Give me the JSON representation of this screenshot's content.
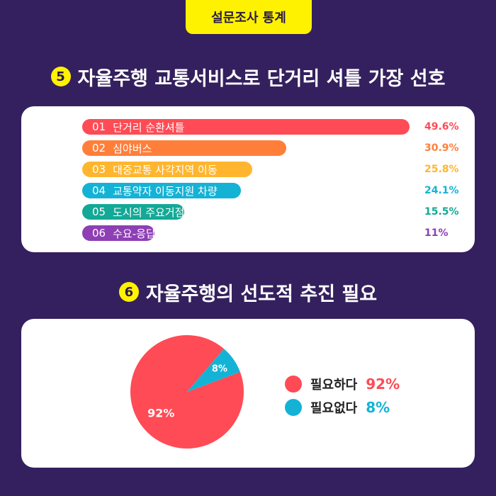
{
  "header": {
    "tag": "설문조사 통계"
  },
  "section5": {
    "number": "5",
    "title": "자율주행 교통서비스로 단거리 셔틀 가장 선호"
  },
  "section6": {
    "number": "6",
    "title": "자율주행의 선도적 추진 필요"
  },
  "chart_data": [
    {
      "type": "bar",
      "orientation": "horizontal",
      "bars": [
        {
          "idx": "01",
          "label": "단거리 순환셔틀",
          "value": 49.6,
          "display": "49.6%",
          "color": "#ff4b55"
        },
        {
          "idx": "02",
          "label": "심야버스",
          "value": 30.9,
          "display": "30.9%",
          "color": "#ff7f3a"
        },
        {
          "idx": "03",
          "label": "대중교통 사각지역 이동",
          "value": 25.8,
          "display": "25.8%",
          "color": "#ffb62e"
        },
        {
          "idx": "04",
          "label": "교통약자 이동지원 차량",
          "value": 24.1,
          "display": "24.1%",
          "color": "#14b3d6"
        },
        {
          "idx": "05",
          "label": "도시의 주요거점 연결형 버스",
          "value": 15.5,
          "display": "15.5%",
          "color": "#13a996"
        },
        {
          "idx": "06",
          "label": "수요-응답형 택시",
          "value": 11,
          "display": "11%",
          "color": "#8e3fb4"
        }
      ]
    },
    {
      "type": "pie",
      "slices": [
        {
          "label": "필요하다",
          "value": 92,
          "display": "92%",
          "color": "#ff4b55"
        },
        {
          "label": "필요없다",
          "value": 8,
          "display": "8%",
          "color": "#14b3d6"
        }
      ]
    }
  ]
}
